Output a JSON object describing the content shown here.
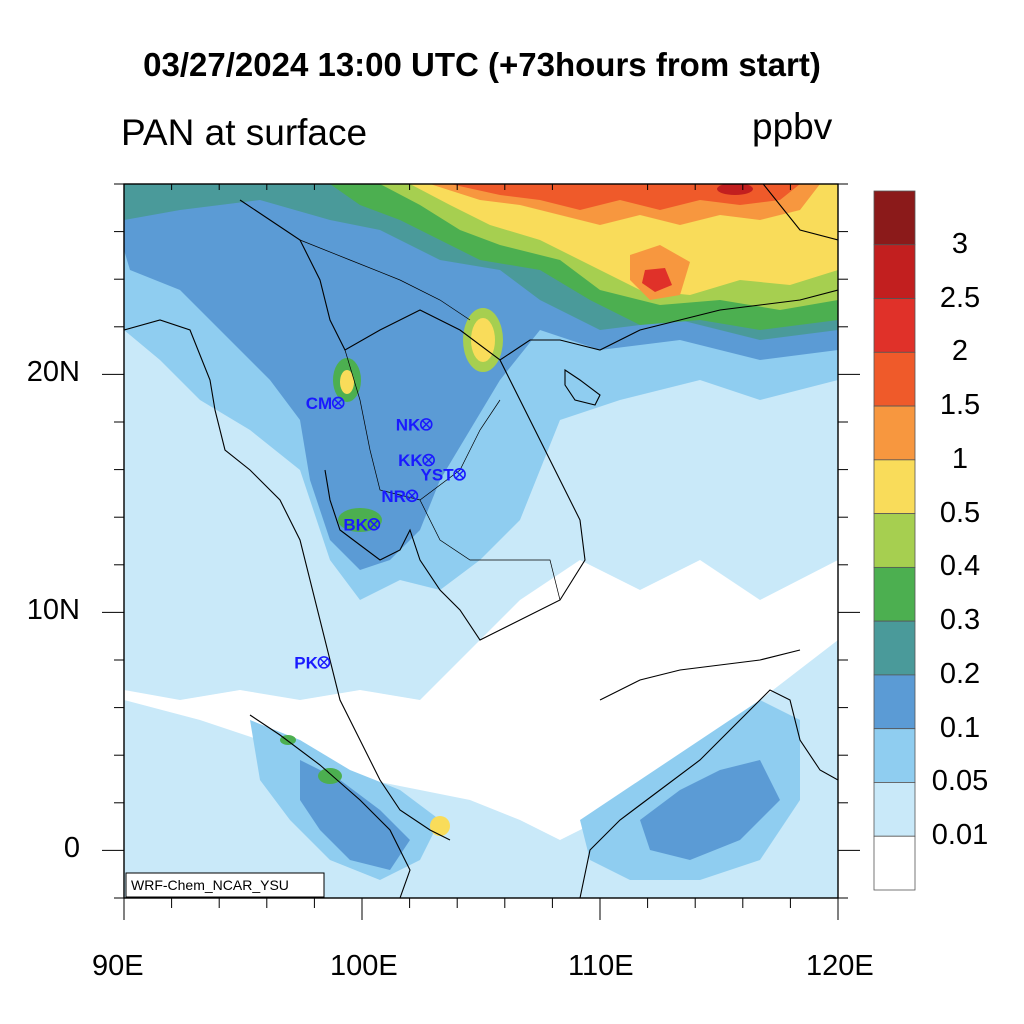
{
  "title": "03/27/2024 13:00 UTC (+73hours from start)",
  "subtitle_left": "PAN at surface",
  "units": "ppbv",
  "model_label": "WRF-Chem_NCAR_YSU",
  "axes": {
    "x_ticks": [
      "90E",
      "100E",
      "110E",
      "120E"
    ],
    "y_ticks": [
      "20N",
      "10N",
      "0"
    ],
    "lon_range": [
      90,
      120
    ],
    "lat_range": [
      -2,
      28
    ]
  },
  "colorbar": {
    "levels": [
      "3",
      "2.5",
      "2",
      "1.5",
      "1",
      "0.5",
      "0.4",
      "0.3",
      "0.2",
      "0.1",
      "0.05",
      "0.01"
    ],
    "colors": [
      "#8b1a1a",
      "#c21f1f",
      "#e03129",
      "#ef5a2a",
      "#f7973f",
      "#f9dc5a",
      "#a6cf50",
      "#4caf50",
      "#4a9a9a",
      "#5b9bd5",
      "#8fcdf0",
      "#c9e9f9",
      "#ffffff"
    ]
  },
  "stations": [
    {
      "name": "CM",
      "lon": 99.0,
      "lat": 18.8
    },
    {
      "name": "NK",
      "lon": 102.7,
      "lat": 17.9
    },
    {
      "name": "KK",
      "lon": 102.8,
      "lat": 16.4
    },
    {
      "name": "YST",
      "lon": 104.1,
      "lat": 15.8
    },
    {
      "name": "NR",
      "lon": 102.1,
      "lat": 14.9
    },
    {
      "name": "BK",
      "lon": 100.5,
      "lat": 13.7
    },
    {
      "name": "PK",
      "lon": 98.4,
      "lat": 7.9
    }
  ]
}
